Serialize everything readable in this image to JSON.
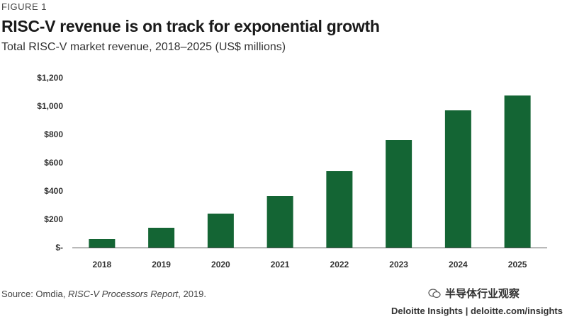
{
  "figure_label": "FIGURE 1",
  "title": "RISC-V revenue is on track for exponential growth",
  "subtitle": "Total RISC-V market revenue, 2018–2025 (US$ millions)",
  "source_prefix": "Source: Omdia, ",
  "source_italic": "RISC-V Processors Report",
  "source_suffix": ", 2019.",
  "watermark_text": "半导体行业观察",
  "footer": "Deloitte Insights | deloitte.com/insights",
  "colors": {
    "bar": "#146534",
    "axis": "#555555"
  },
  "chart_data": {
    "type": "bar",
    "categories": [
      "2018",
      "2019",
      "2020",
      "2021",
      "2022",
      "2023",
      "2024",
      "2025"
    ],
    "values": [
      60,
      140,
      240,
      365,
      540,
      760,
      970,
      1075
    ],
    "ylim": [
      0,
      1200
    ],
    "yticks": [
      0,
      200,
      400,
      600,
      800,
      1000,
      1200
    ],
    "ytick_labels": [
      "$-",
      "$200",
      "$400",
      "$600",
      "$800",
      "$1,000",
      "$1,200"
    ],
    "xlabel": "",
    "ylabel": "",
    "grid": false
  }
}
